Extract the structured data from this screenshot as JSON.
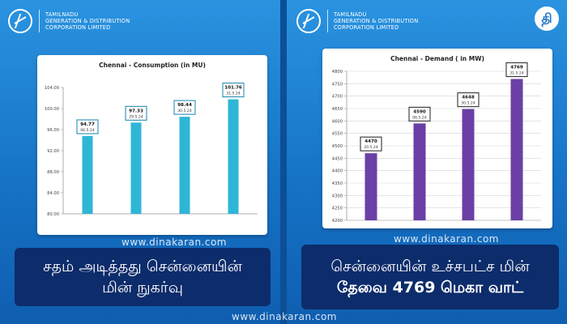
{
  "header": {
    "org_line1": "TAMILNADU",
    "org_line2": "GENERATION & DISTRIBUTION",
    "org_line3": "CORPORATION LIMITED"
  },
  "brand_logo_text": "தி",
  "watermark": "www.dinakaran.com",
  "colors": {
    "bar_left": "#2fb6d6",
    "bar_right": "#6b3fa6",
    "label_box_left": "#2a8fb6",
    "caption_bg": "#0d2c6b"
  },
  "captions": {
    "left_line1": "சதம் அடித்தது சென்னையின்",
    "left_line2": "மின் நுகர்வு",
    "right_line1": "சென்னையின் உச்சபட்ச மின்",
    "right_line2": "தேவை 4769 மெகா வாட்"
  },
  "chart_data": [
    {
      "type": "bar",
      "title": "Chennai - Consumption (in MU)",
      "ylim": [
        80,
        104
      ],
      "yticks": [
        "80.00",
        "84.00",
        "88.00",
        "92.00",
        "96.00",
        "100.00",
        "104.00"
      ],
      "ytick_values": [
        80,
        84,
        88,
        92,
        96,
        100,
        104
      ],
      "values": [
        94.77,
        97.33,
        98.44,
        101.76
      ],
      "value_labels": [
        "94.77",
        "97.33",
        "98.44",
        "101.76"
      ],
      "dates": [
        "06.5.24",
        "29.5.24",
        "30.5.24",
        "31.5.24"
      ],
      "grid": false
    },
    {
      "type": "bar",
      "title": "Chennai - Demand ( in MW)",
      "ylim": [
        4200,
        4800
      ],
      "yticks": [
        "4200",
        "4250",
        "4300",
        "4350",
        "4400",
        "4450",
        "4500",
        "4550",
        "4600",
        "4650",
        "4700",
        "4750",
        "4800"
      ],
      "ytick_values": [
        4200,
        4250,
        4300,
        4350,
        4400,
        4450,
        4500,
        4550,
        4600,
        4650,
        4700,
        4750,
        4800
      ],
      "values": [
        4470,
        4590,
        4648,
        4769
      ],
      "value_labels": [
        "4470",
        "4590",
        "4648",
        "4769"
      ],
      "dates": [
        "20.5.24",
        "06.5.24",
        "30.5.24",
        "31.5.24"
      ],
      "grid": true
    }
  ]
}
